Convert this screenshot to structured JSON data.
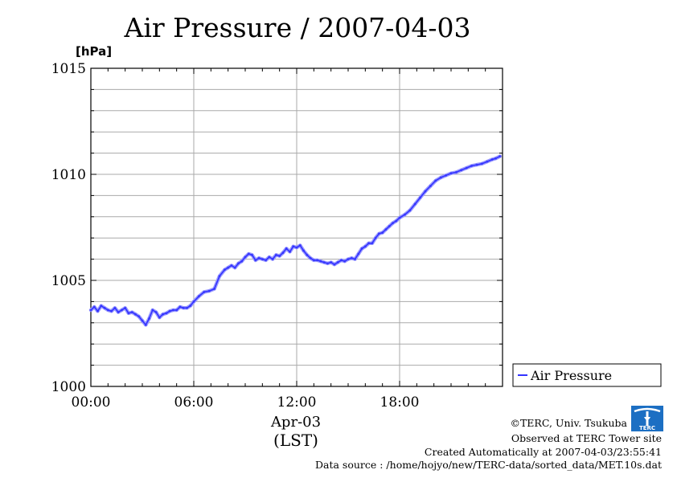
{
  "chart_data": {
    "type": "line",
    "title": "Air Pressure / 2007-04-03",
    "ylabel": "[hPa]",
    "ylim": [
      1000,
      1015
    ],
    "yticks": [
      "1000",
      "1005",
      "1010",
      "1015"
    ],
    "xlim": [
      0,
      24
    ],
    "xticks": [
      "00:00",
      "06:00",
      "12:00",
      "18:00"
    ],
    "xdate": "Apr-03",
    "xtimezone": "(LST)",
    "grid": true,
    "legend_position": "right",
    "series": [
      {
        "name": "Air Pressure",
        "color": "#3333ff",
        "x": [
          0.0,
          0.2,
          0.4,
          0.6,
          0.8,
          1.0,
          1.2,
          1.4,
          1.6,
          1.8,
          2.0,
          2.2,
          2.4,
          2.6,
          2.8,
          3.0,
          3.2,
          3.4,
          3.6,
          3.8,
          4.0,
          4.2,
          4.4,
          4.6,
          4.8,
          5.0,
          5.2,
          5.4,
          5.6,
          5.8,
          6.0,
          6.3,
          6.6,
          6.9,
          7.2,
          7.5,
          7.8,
          8.0,
          8.2,
          8.4,
          8.6,
          8.8,
          9.0,
          9.2,
          9.4,
          9.6,
          9.8,
          10.0,
          10.2,
          10.4,
          10.6,
          10.8,
          11.0,
          11.2,
          11.4,
          11.6,
          11.8,
          12.0,
          12.2,
          12.4,
          12.6,
          12.8,
          13.0,
          13.2,
          13.4,
          13.6,
          13.8,
          14.0,
          14.2,
          14.4,
          14.6,
          14.8,
          15.0,
          15.2,
          15.4,
          15.6,
          15.8,
          16.0,
          16.2,
          16.4,
          16.6,
          16.8,
          17.0,
          17.2,
          17.4,
          17.6,
          17.8,
          18.0,
          18.3,
          18.6,
          18.9,
          19.2,
          19.5,
          19.8,
          20.1,
          20.4,
          20.7,
          21.0,
          21.3,
          21.6,
          21.9,
          22.2,
          22.5,
          22.8,
          23.1,
          23.4,
          23.6,
          23.85
        ],
        "values": [
          1003.6,
          1003.75,
          1003.55,
          1003.8,
          1003.7,
          1003.6,
          1003.55,
          1003.7,
          1003.5,
          1003.6,
          1003.7,
          1003.45,
          1003.5,
          1003.4,
          1003.3,
          1003.1,
          1002.9,
          1003.2,
          1003.6,
          1003.5,
          1003.25,
          1003.4,
          1003.45,
          1003.55,
          1003.6,
          1003.6,
          1003.75,
          1003.7,
          1003.7,
          1003.8,
          1004.0,
          1004.25,
          1004.45,
          1004.5,
          1004.6,
          1005.2,
          1005.5,
          1005.6,
          1005.7,
          1005.6,
          1005.8,
          1005.9,
          1006.1,
          1006.25,
          1006.2,
          1005.95,
          1006.05,
          1006.0,
          1005.95,
          1006.1,
          1006.0,
          1006.2,
          1006.15,
          1006.3,
          1006.5,
          1006.35,
          1006.6,
          1006.55,
          1006.65,
          1006.4,
          1006.2,
          1006.05,
          1005.95,
          1005.95,
          1005.9,
          1005.85,
          1005.8,
          1005.85,
          1005.75,
          1005.85,
          1005.95,
          1005.9,
          1006.0,
          1006.05,
          1006.0,
          1006.25,
          1006.5,
          1006.6,
          1006.75,
          1006.75,
          1007.0,
          1007.2,
          1007.25,
          1007.4,
          1007.55,
          1007.7,
          1007.8,
          1007.95,
          1008.1,
          1008.3,
          1008.6,
          1008.9,
          1009.2,
          1009.45,
          1009.7,
          1009.85,
          1009.95,
          1010.05,
          1010.1,
          1010.2,
          1010.3,
          1010.4,
          1010.45,
          1010.5,
          1010.6,
          1010.7,
          1010.75,
          1010.85
        ]
      }
    ]
  },
  "credits": {
    "copyright": "©TERC, Univ. Tsukuba",
    "observed": "Observed at TERC Tower site",
    "created": "Created Automatically at 2007-04-03/23:55:41",
    "source": "Data source : /home/hojyo/new/TERC-data/sorted_data/MET.10s.dat"
  },
  "logo": {
    "label": "TERC",
    "color": "#1c6fc3"
  }
}
